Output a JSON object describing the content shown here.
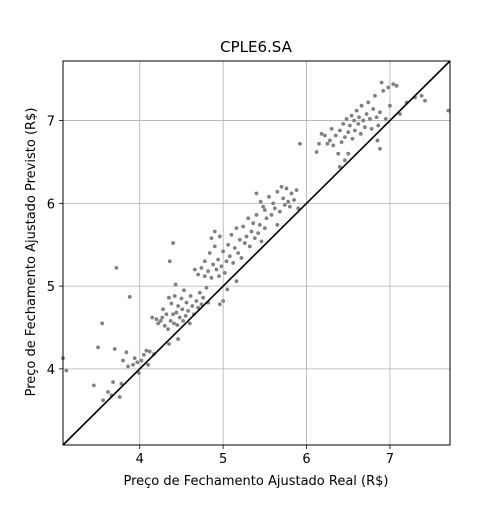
{
  "chart_data": {
    "type": "scatter",
    "title": "CPLE6.SA",
    "xlabel": "Preço de Fechamento Ajustado Real (R$)",
    "ylabel": "Preço de Fechamento Ajustado Previsto (R$)",
    "xlim": [
      3.08,
      7.72
    ],
    "ylim": [
      3.08,
      7.72
    ],
    "xticks": [
      4,
      5,
      6,
      7
    ],
    "yticks": [
      4,
      5,
      6,
      7
    ],
    "xtick_labels": [
      "4",
      "5",
      "6",
      "7"
    ],
    "ytick_labels": [
      "4",
      "5",
      "6",
      "7"
    ],
    "grid": true,
    "reference_line": {
      "from": [
        3.08,
        3.08
      ],
      "to": [
        7.72,
        7.72
      ],
      "color": "#000000"
    },
    "point_color": "#808080",
    "series": [
      {
        "points": [
          [
            3.08,
            4.13
          ],
          [
            3.12,
            3.98
          ],
          [
            3.45,
            3.8
          ],
          [
            3.55,
            4.55
          ],
          [
            3.5,
            4.26
          ],
          [
            3.56,
            3.62
          ],
          [
            3.62,
            3.72
          ],
          [
            3.66,
            3.68
          ],
          [
            3.68,
            3.84
          ],
          [
            3.7,
            4.24
          ],
          [
            3.72,
            5.22
          ],
          [
            3.76,
            3.66
          ],
          [
            3.78,
            3.82
          ],
          [
            3.8,
            4.1
          ],
          [
            3.84,
            4.2
          ],
          [
            3.86,
            4.03
          ],
          [
            3.88,
            4.87
          ],
          [
            3.92,
            4.05
          ],
          [
            3.94,
            4.13
          ],
          [
            3.97,
            4.08
          ],
          [
            3.99,
            3.95
          ],
          [
            4.02,
            4.1
          ],
          [
            4.05,
            4.17
          ],
          [
            4.08,
            4.22
          ],
          [
            4.1,
            4.05
          ],
          [
            4.12,
            4.21
          ],
          [
            4.15,
            4.62
          ],
          [
            4.17,
            4.18
          ],
          [
            4.2,
            4.6
          ],
          [
            4.22,
            4.55
          ],
          [
            4.25,
            4.58
          ],
          [
            4.27,
            4.62
          ],
          [
            4.28,
            4.72
          ],
          [
            4.3,
            4.52
          ],
          [
            4.32,
            4.66
          ],
          [
            4.34,
            4.48
          ],
          [
            4.35,
            4.86
          ],
          [
            4.37,
            4.58
          ],
          [
            4.38,
            4.79
          ],
          [
            4.4,
            4.66
          ],
          [
            4.41,
            4.55
          ],
          [
            4.42,
            4.88
          ],
          [
            4.43,
            5.02
          ],
          [
            4.44,
            4.68
          ],
          [
            4.45,
            4.53
          ],
          [
            4.46,
            4.76
          ],
          [
            4.48,
            4.62
          ],
          [
            4.5,
            4.85
          ],
          [
            4.51,
            4.72
          ],
          [
            4.52,
            4.58
          ],
          [
            4.53,
            4.95
          ],
          [
            4.55,
            4.64
          ],
          [
            4.56,
            4.8
          ],
          [
            4.58,
            4.7
          ],
          [
            4.6,
            4.55
          ],
          [
            4.61,
            4.88
          ],
          [
            4.63,
            4.76
          ],
          [
            4.65,
            4.66
          ],
          [
            4.66,
            5.2
          ],
          [
            4.68,
            4.82
          ],
          [
            4.7,
            4.74
          ],
          [
            4.72,
            4.92
          ],
          [
            4.74,
            4.78
          ],
          [
            4.76,
            4.86
          ],
          [
            4.78,
            5.12
          ],
          [
            4.8,
            4.98
          ],
          [
            4.82,
            4.8
          ],
          [
            4.35,
            4.3
          ],
          [
            4.4,
            5.52
          ],
          [
            4.46,
            4.36
          ],
          [
            4.36,
            5.3
          ],
          [
            4.7,
            5.14
          ],
          [
            4.74,
            5.22
          ],
          [
            4.78,
            5.3
          ],
          [
            4.82,
            5.18
          ],
          [
            4.84,
            5.4
          ],
          [
            4.86,
            5.1
          ],
          [
            4.88,
            5.26
          ],
          [
            4.9,
            5.48
          ],
          [
            4.92,
            5.2
          ],
          [
            4.94,
            5.32
          ],
          [
            4.95,
            5.12
          ],
          [
            4.96,
            5.6
          ],
          [
            4.98,
            5.24
          ],
          [
            5.0,
            5.42
          ],
          [
            5.02,
            5.16
          ],
          [
            5.04,
            5.3
          ],
          [
            5.06,
            5.5
          ],
          [
            5.08,
            5.36
          ],
          [
            5.1,
            5.62
          ],
          [
            5.12,
            5.28
          ],
          [
            5.14,
            5.46
          ],
          [
            5.16,
            5.7
          ],
          [
            5.18,
            5.4
          ],
          [
            5.2,
            5.56
          ],
          [
            5.22,
            5.34
          ],
          [
            5.24,
            5.72
          ],
          [
            5.26,
            5.52
          ],
          [
            5.28,
            5.6
          ],
          [
            5.3,
            5.82
          ],
          [
            5.32,
            5.48
          ],
          [
            5.34,
            5.66
          ],
          [
            5.36,
            5.76
          ],
          [
            5.38,
            5.58
          ],
          [
            5.4,
            5.86
          ],
          [
            5.42,
            5.64
          ],
          [
            5.44,
            5.74
          ],
          [
            5.46,
            5.54
          ],
          [
            5.48,
            5.96
          ],
          [
            5.5,
            5.7
          ],
          [
            5.52,
            5.82
          ],
          [
            5.0,
            4.82
          ],
          [
            5.05,
            4.96
          ],
          [
            4.96,
            4.78
          ],
          [
            5.16,
            5.06
          ],
          [
            5.4,
            6.12
          ],
          [
            4.9,
            5.66
          ],
          [
            4.86,
            5.58
          ],
          [
            5.45,
            6.02
          ],
          [
            5.5,
            5.92
          ],
          [
            5.55,
            6.08
          ],
          [
            5.58,
            5.86
          ],
          [
            5.6,
            6.0
          ],
          [
            5.62,
            5.94
          ],
          [
            5.65,
            6.14
          ],
          [
            5.68,
            5.9
          ],
          [
            5.7,
            6.2
          ],
          [
            5.72,
            6.06
          ],
          [
            5.74,
            5.98
          ],
          [
            5.76,
            6.18
          ],
          [
            5.78,
            6.02
          ],
          [
            5.8,
            5.96
          ],
          [
            5.82,
            6.12
          ],
          [
            5.85,
            6.04
          ],
          [
            5.88,
            6.16
          ],
          [
            5.9,
            5.94
          ],
          [
            5.65,
            5.74
          ],
          [
            5.92,
            6.72
          ],
          [
            6.12,
            6.62
          ],
          [
            6.15,
            6.72
          ],
          [
            6.18,
            6.84
          ],
          [
            6.22,
            6.82
          ],
          [
            6.25,
            6.72
          ],
          [
            6.28,
            6.76
          ],
          [
            6.3,
            6.9
          ],
          [
            6.32,
            6.7
          ],
          [
            6.35,
            6.82
          ],
          [
            6.38,
            6.6
          ],
          [
            6.4,
            6.88
          ],
          [
            6.42,
            6.74
          ],
          [
            6.44,
            6.96
          ],
          [
            6.46,
            6.8
          ],
          [
            6.48,
            7.02
          ],
          [
            6.5,
            6.86
          ],
          [
            6.52,
            6.94
          ],
          [
            6.54,
            7.06
          ],
          [
            6.55,
            6.78
          ],
          [
            6.57,
            7.0
          ],
          [
            6.58,
            6.88
          ],
          [
            6.6,
            7.12
          ],
          [
            6.62,
            6.96
          ],
          [
            6.63,
            7.04
          ],
          [
            6.65,
            6.84
          ],
          [
            6.66,
            7.18
          ],
          [
            6.68,
            7.0
          ],
          [
            6.7,
            6.92
          ],
          [
            6.72,
            7.08
          ],
          [
            6.74,
            7.22
          ],
          [
            6.76,
            7.02
          ],
          [
            6.78,
            6.9
          ],
          [
            6.8,
            7.14
          ],
          [
            6.82,
            7.3
          ],
          [
            6.84,
            7.04
          ],
          [
            6.86,
            6.94
          ],
          [
            6.88,
            7.1
          ],
          [
            6.9,
            7.46
          ],
          [
            6.92,
            7.36
          ],
          [
            6.95,
            7.02
          ],
          [
            6.98,
            7.4
          ],
          [
            7.0,
            7.18
          ],
          [
            7.04,
            7.44
          ],
          [
            7.08,
            7.42
          ],
          [
            7.12,
            7.08
          ],
          [
            7.2,
            7.22
          ],
          [
            7.3,
            7.28
          ],
          [
            7.38,
            7.3
          ],
          [
            7.42,
            7.24
          ],
          [
            7.7,
            7.12
          ],
          [
            6.4,
            6.44
          ],
          [
            6.46,
            6.52
          ],
          [
            6.5,
            6.6
          ],
          [
            6.88,
            6.66
          ],
          [
            6.85,
            6.76
          ]
        ]
      }
    ]
  }
}
